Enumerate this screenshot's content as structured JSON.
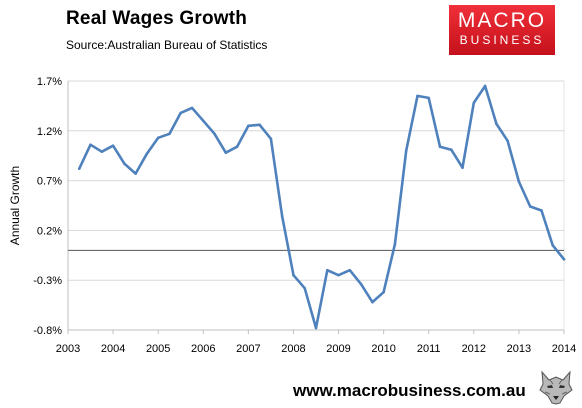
{
  "header": {
    "title": "Real Wages Growth",
    "source": "Source:Australian Bureau of Statistics"
  },
  "logo": {
    "line1": "MACRO",
    "line2": "BUSINESS",
    "color": "#e3232c"
  },
  "footer": {
    "website": "www.macrobusiness.com.au",
    "mascot_icon": "wolf-head-icon"
  },
  "chart_data": {
    "type": "line",
    "title": "Real Wages Growth",
    "ylabel": "Annual Growth",
    "xlabel": "",
    "xlim": [
      2003,
      2014
    ],
    "ylim": [
      -0.8,
      1.7
    ],
    "y_ticks": [
      -0.8,
      -0.3,
      0.2,
      0.7,
      1.2,
      1.7
    ],
    "y_tick_labels": [
      "-0.8%",
      "-0.3%",
      "0.2%",
      "0.7%",
      "1.2%",
      "1.7%"
    ],
    "x_ticks": [
      2003,
      2004,
      2005,
      2006,
      2007,
      2008,
      2009,
      2010,
      2011,
      2012,
      2013,
      2014
    ],
    "x_tick_labels": [
      "2003",
      "2004",
      "2005",
      "2006",
      "2007",
      "2008",
      "2009",
      "2010",
      "2011",
      "2012",
      "2013",
      "2014"
    ],
    "grid": "horizontal",
    "zero_line": true,
    "line_color": "#4f81bd",
    "series": [
      {
        "x": [
          2003.25,
          2003.5,
          2003.75,
          2004.0,
          2004.25,
          2004.5,
          2004.75,
          2005.0,
          2005.25,
          2005.5,
          2005.75,
          2006.0,
          2006.25,
          2006.5,
          2006.75,
          2007.0,
          2007.25,
          2007.5,
          2007.75,
          2008.0,
          2008.25,
          2008.5,
          2008.75,
          2009.0,
          2009.25,
          2009.5,
          2009.75,
          2010.0,
          2010.25,
          2010.5,
          2010.75,
          2011.0,
          2011.25,
          2011.5,
          2011.75,
          2012.0,
          2012.25,
          2012.5,
          2012.75,
          2013.0,
          2013.25,
          2013.5,
          2013.75,
          2014.0
        ],
        "values": [
          0.82,
          1.06,
          0.99,
          1.05,
          0.87,
          0.77,
          0.97,
          1.13,
          1.17,
          1.38,
          1.43,
          1.3,
          1.17,
          0.98,
          1.04,
          1.25,
          1.26,
          1.12,
          0.34,
          -0.25,
          -0.38,
          -0.78,
          -0.2,
          -0.25,
          -0.2,
          -0.34,
          -0.52,
          -0.42,
          0.06,
          1.0,
          1.55,
          1.53,
          1.04,
          1.01,
          0.83,
          1.48,
          1.65,
          1.27,
          1.1,
          0.69,
          0.44,
          0.4,
          0.05,
          -0.09
        ]
      }
    ]
  }
}
